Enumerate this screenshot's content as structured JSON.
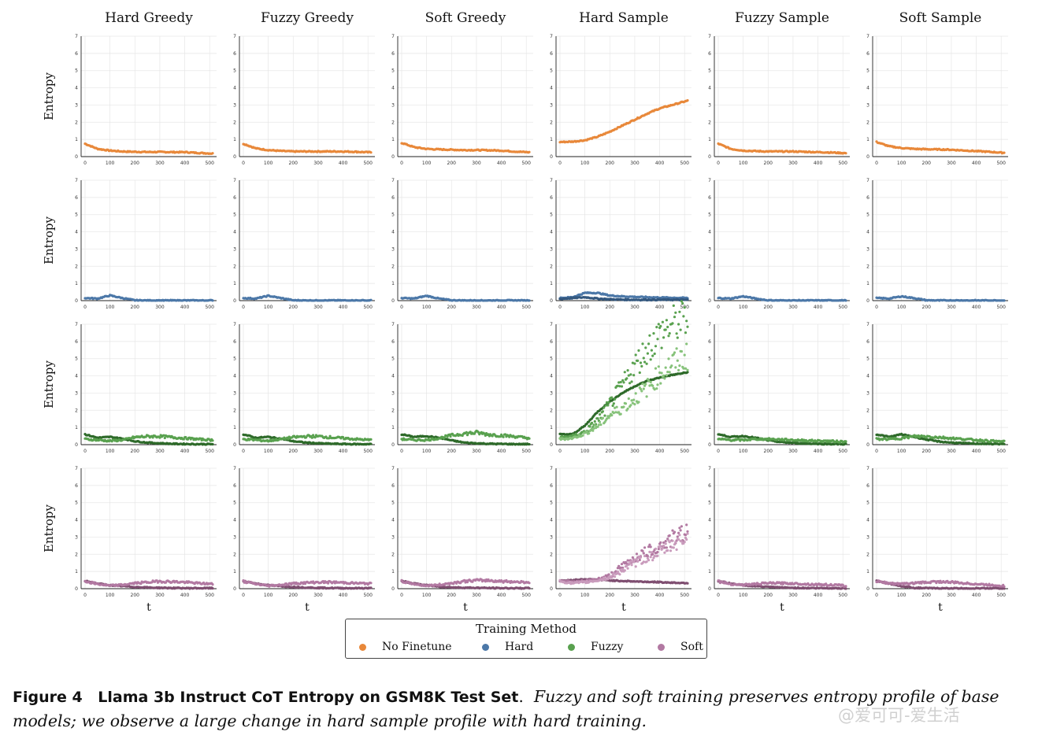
{
  "figure": {
    "columns": [
      "Hard Greedy",
      "Fuzzy Greedy",
      "Soft Greedy",
      "Hard Sample",
      "Fuzzy Sample",
      "Soft Sample"
    ],
    "ylabel": "Entropy",
    "xlabel": "t",
    "rows": [
      "No Finetune",
      "Hard",
      "Fuzzy",
      "Soft"
    ]
  },
  "legend": {
    "title": "Training Method",
    "items": [
      {
        "label": "No Finetune",
        "color": "#E8883A"
      },
      {
        "label": "Hard",
        "color": "#4C78A8"
      },
      {
        "label": "Fuzzy",
        "color": "#59A14F"
      },
      {
        "label": "Soft",
        "color": "#B279A2"
      }
    ]
  },
  "caption": {
    "label": "Figure 4",
    "title": "Llama 3b Instruct CoT Entropy on GSM8K Test Set",
    "text": "Fuzzy and soft training preserves entropy profile of base models; we observe a large change in hard sample profile with hard training."
  },
  "watermark": "@爱可可-爱生活",
  "chart_data": {
    "type": "scatter",
    "xlim": [
      0,
      512
    ],
    "ylim": [
      0,
      7
    ],
    "xticks": [
      0,
      100,
      200,
      300,
      400,
      500
    ],
    "yticks": [
      0,
      1,
      2,
      3,
      4,
      5,
      6,
      7
    ],
    "grid": true,
    "legend_position": "bottom-center",
    "x": [
      0,
      50,
      100,
      150,
      200,
      250,
      300,
      350,
      400,
      450,
      512
    ],
    "panels": [
      {
        "row": "No Finetune",
        "column": "Hard Greedy",
        "series": [
          {
            "values": [
              0.75,
              0.45,
              0.35,
              0.3,
              0.28,
              0.27,
              0.27,
              0.26,
              0.26,
              0.22,
              0.18
            ]
          }
        ]
      },
      {
        "row": "No Finetune",
        "column": "Fuzzy Greedy",
        "series": [
          {
            "values": [
              0.75,
              0.48,
              0.38,
              0.33,
              0.3,
              0.3,
              0.3,
              0.3,
              0.3,
              0.28,
              0.25
            ]
          }
        ]
      },
      {
        "row": "No Finetune",
        "column": "Soft Greedy",
        "series": [
          {
            "values": [
              0.8,
              0.55,
              0.45,
              0.42,
              0.4,
              0.38,
              0.38,
              0.37,
              0.35,
              0.3,
              0.25
            ]
          }
        ]
      },
      {
        "row": "No Finetune",
        "column": "Hard Sample",
        "series": [
          {
            "values": [
              0.85,
              0.87,
              0.95,
              1.15,
              1.45,
              1.8,
              2.15,
              2.5,
              2.8,
              3.0,
              3.25
            ]
          }
        ]
      },
      {
        "row": "No Finetune",
        "column": "Fuzzy Sample",
        "series": [
          {
            "values": [
              0.75,
              0.45,
              0.35,
              0.32,
              0.3,
              0.3,
              0.3,
              0.28,
              0.26,
              0.24,
              0.2
            ]
          }
        ]
      },
      {
        "row": "No Finetune",
        "column": "Soft Sample",
        "series": [
          {
            "values": [
              0.85,
              0.6,
              0.5,
              0.45,
              0.43,
              0.42,
              0.4,
              0.36,
              0.32,
              0.28,
              0.22
            ]
          }
        ]
      },
      {
        "row": "Hard",
        "column": "Hard Greedy",
        "series": [
          {
            "values": [
              0.15,
              0.12,
              0.3,
              0.15,
              0.02,
              0.01,
              0.01,
              0.01,
              0.01,
              0.01,
              0.01
            ]
          }
        ]
      },
      {
        "row": "Hard",
        "column": "Fuzzy Greedy",
        "series": [
          {
            "values": [
              0.15,
              0.12,
              0.28,
              0.15,
              0.02,
              0.01,
              0.01,
              0.01,
              0.01,
              0.01,
              0.01
            ]
          }
        ]
      },
      {
        "row": "Hard",
        "column": "Soft Greedy",
        "series": [
          {
            "values": [
              0.15,
              0.12,
              0.28,
              0.12,
              0.02,
              0.01,
              0.01,
              0.01,
              0.01,
              0.01,
              0.01
            ]
          }
        ]
      },
      {
        "row": "Hard",
        "column": "Hard Sample",
        "series": [
          {
            "values": [
              0.15,
              0.2,
              0.45,
              0.45,
              0.3,
              0.25,
              0.22,
              0.2,
              0.18,
              0.17,
              0.15
            ]
          },
          {
            "values": [
              0.1,
              0.15,
              0.2,
              0.12,
              0.08,
              0.06,
              0.05,
              0.05,
              0.05,
              0.05,
              0.05
            ]
          }
        ]
      },
      {
        "row": "Hard",
        "column": "Fuzzy Sample",
        "series": [
          {
            "values": [
              0.15,
              0.12,
              0.25,
              0.12,
              0.02,
              0.01,
              0.01,
              0.01,
              0.01,
              0.01,
              0.01
            ]
          }
        ]
      },
      {
        "row": "Hard",
        "column": "Soft Sample",
        "series": [
          {
            "values": [
              0.15,
              0.12,
              0.25,
              0.15,
              0.02,
              0.01,
              0.01,
              0.01,
              0.01,
              0.01,
              0.01
            ]
          }
        ]
      },
      {
        "row": "Fuzzy",
        "column": "Hard Greedy",
        "series": [
          {
            "values": [
              0.6,
              0.4,
              0.45,
              0.35,
              0.2,
              0.12,
              0.08,
              0.05,
              0.04,
              0.03,
              0.03
            ]
          },
          {
            "values": [
              0.3,
              0.25,
              0.2,
              0.25,
              0.4,
              0.45,
              0.45,
              0.4,
              0.35,
              0.3,
              0.25
            ]
          }
        ]
      },
      {
        "row": "Fuzzy",
        "column": "Fuzzy Greedy",
        "series": [
          {
            "values": [
              0.6,
              0.4,
              0.45,
              0.35,
              0.2,
              0.12,
              0.08,
              0.05,
              0.04,
              0.03,
              0.03
            ]
          },
          {
            "values": [
              0.3,
              0.25,
              0.2,
              0.3,
              0.4,
              0.45,
              0.45,
              0.4,
              0.35,
              0.3,
              0.25
            ]
          }
        ]
      },
      {
        "row": "Fuzzy",
        "column": "Soft Greedy",
        "series": [
          {
            "values": [
              0.6,
              0.45,
              0.5,
              0.4,
              0.25,
              0.12,
              0.08,
              0.05,
              0.04,
              0.03,
              0.03
            ]
          },
          {
            "values": [
              0.3,
              0.25,
              0.25,
              0.35,
              0.5,
              0.6,
              0.65,
              0.55,
              0.5,
              0.45,
              0.35
            ]
          }
        ]
      },
      {
        "row": "Fuzzy",
        "column": "Hard Sample",
        "series": [
          {
            "values": [
              0.6,
              0.6,
              1.1,
              1.9,
              2.5,
              3.0,
              3.4,
              3.7,
              3.9,
              4.05,
              4.2
            ]
          },
          {
            "values": [
              0.4,
              0.45,
              0.7,
              1.3,
              2.2,
              3.2,
              4.3,
              5.2,
              6.0,
              6.5,
              6.9
            ]
          },
          {
            "values": [
              0.3,
              0.35,
              0.6,
              1.0,
              1.6,
              2.0,
              2.5,
              3.1,
              3.8,
              4.4,
              4.8
            ]
          }
        ]
      },
      {
        "row": "Fuzzy",
        "column": "Fuzzy Sample",
        "series": [
          {
            "values": [
              0.6,
              0.45,
              0.5,
              0.4,
              0.25,
              0.15,
              0.1,
              0.07,
              0.05,
              0.04,
              0.03
            ]
          },
          {
            "values": [
              0.3,
              0.25,
              0.25,
              0.3,
              0.3,
              0.28,
              0.25,
              0.22,
              0.2,
              0.18,
              0.15
            ]
          }
        ]
      },
      {
        "row": "Fuzzy",
        "column": "Soft Sample",
        "series": [
          {
            "values": [
              0.6,
              0.45,
              0.6,
              0.45,
              0.3,
              0.18,
              0.12,
              0.08,
              0.06,
              0.05,
              0.04
            ]
          },
          {
            "values": [
              0.3,
              0.3,
              0.35,
              0.45,
              0.45,
              0.4,
              0.35,
              0.3,
              0.25,
              0.2,
              0.15
            ]
          }
        ]
      },
      {
        "row": "Soft",
        "column": "Hard Greedy",
        "series": [
          {
            "values": [
              0.45,
              0.3,
              0.2,
              0.15,
              0.1,
              0.07,
              0.05,
              0.04,
              0.03,
              0.03,
              0.03
            ]
          },
          {
            "values": [
              0.4,
              0.25,
              0.15,
              0.2,
              0.3,
              0.35,
              0.4,
              0.38,
              0.35,
              0.3,
              0.25
            ]
          }
        ]
      },
      {
        "row": "Soft",
        "column": "Fuzzy Greedy",
        "series": [
          {
            "values": [
              0.45,
              0.3,
              0.2,
              0.15,
              0.1,
              0.07,
              0.05,
              0.04,
              0.03,
              0.03,
              0.03
            ]
          },
          {
            "values": [
              0.4,
              0.25,
              0.15,
              0.2,
              0.28,
              0.32,
              0.35,
              0.35,
              0.33,
              0.3,
              0.27
            ]
          }
        ]
      },
      {
        "row": "Soft",
        "column": "Soft Greedy",
        "series": [
          {
            "values": [
              0.45,
              0.3,
              0.2,
              0.12,
              0.08,
              0.06,
              0.05,
              0.04,
              0.03,
              0.03,
              0.03
            ]
          },
          {
            "values": [
              0.4,
              0.25,
              0.15,
              0.2,
              0.3,
              0.4,
              0.45,
              0.45,
              0.4,
              0.38,
              0.35
            ]
          }
        ]
      },
      {
        "row": "Soft",
        "column": "Hard Sample",
        "series": [
          {
            "values": [
              0.45,
              0.5,
              0.55,
              0.52,
              0.48,
              0.45,
              0.42,
              0.4,
              0.38,
              0.35,
              0.33
            ]
          },
          {
            "values": [
              0.45,
              0.35,
              0.4,
              0.5,
              0.7,
              1.2,
              1.7,
              2.0,
              2.3,
              2.7,
              3.2
            ]
          },
          {
            "values": [
              0.4,
              0.3,
              0.35,
              0.45,
              0.6,
              1.0,
              1.4,
              1.7,
              2.0,
              2.4,
              2.8
            ]
          }
        ]
      },
      {
        "row": "Soft",
        "column": "Fuzzy Sample",
        "series": [
          {
            "values": [
              0.45,
              0.3,
              0.2,
              0.15,
              0.1,
              0.07,
              0.05,
              0.04,
              0.03,
              0.03,
              0.03
            ]
          },
          {
            "values": [
              0.4,
              0.25,
              0.2,
              0.25,
              0.3,
              0.3,
              0.28,
              0.25,
              0.22,
              0.2,
              0.15
            ]
          }
        ]
      },
      {
        "row": "Soft",
        "column": "Soft Sample",
        "series": [
          {
            "values": [
              0.45,
              0.3,
              0.15,
              0.05,
              0.03,
              0.02,
              0.02,
              0.02,
              0.02,
              0.02,
              0.02
            ]
          },
          {
            "values": [
              0.4,
              0.3,
              0.25,
              0.3,
              0.35,
              0.38,
              0.35,
              0.3,
              0.25,
              0.2,
              0.15
            ]
          }
        ]
      }
    ]
  }
}
